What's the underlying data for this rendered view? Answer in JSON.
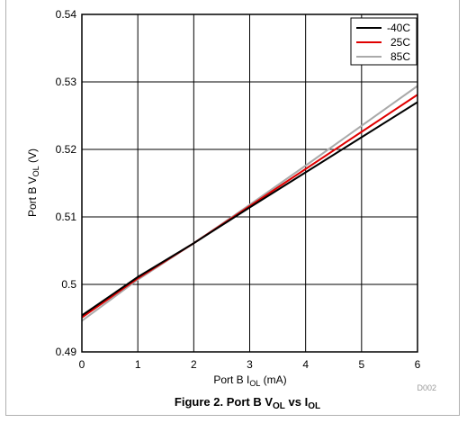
{
  "chart_data": {
    "type": "line",
    "xlabel": {
      "main": "Port B I",
      "sub": "OL",
      "unit": " (mA)"
    },
    "ylabel": {
      "main": "Port B V",
      "sub": "OL",
      "unit": " (V)"
    },
    "xlim": [
      0,
      6
    ],
    "ylim": [
      0.49,
      0.54
    ],
    "x_ticks": [
      "0",
      "1",
      "2",
      "3",
      "4",
      "5",
      "6"
    ],
    "y_ticks": [
      "0.49",
      "0.5",
      "0.51",
      "0.52",
      "0.53",
      "0.54"
    ],
    "grid": true,
    "legend_position": "top-right",
    "x": [
      0,
      1,
      2,
      3,
      4,
      5,
      6
    ],
    "series": [
      {
        "name": "-40C",
        "color": "#000000",
        "values": [
          0.4954,
          0.5011,
          0.5061,
          0.5114,
          0.5166,
          0.5218,
          0.527
        ]
      },
      {
        "name": "25C",
        "color": "#e00000",
        "values": [
          0.4951,
          0.5009,
          0.5061,
          0.5116,
          0.5171,
          0.5226,
          0.5281
        ]
      },
      {
        "name": "85C",
        "color": "#aaaaaa",
        "values": [
          0.4946,
          0.5007,
          0.5061,
          0.5118,
          0.5176,
          0.5235,
          0.5294
        ]
      }
    ]
  },
  "caption": {
    "prefix": "Figure 2. Port B V",
    "sub1": "OL",
    "mid": " vs I",
    "sub2": "OL"
  },
  "figure_id": "D002"
}
